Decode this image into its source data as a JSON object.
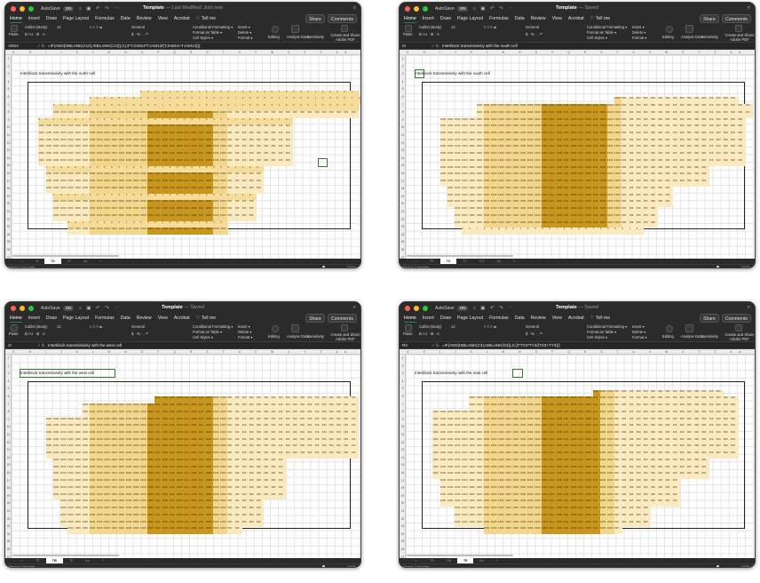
{
  "app": {
    "autosave_label": "AutoSave",
    "autosave_state": "ON",
    "quick_access": "⌂ ▣ ↶ ↷ ⋯",
    "file_name": "Template"
  },
  "menu": [
    "Home",
    "Insert",
    "Draw",
    "Page Layout",
    "Formulas",
    "Data",
    "Review",
    "View",
    "Acrobat"
  ],
  "tell_me": "Tell me",
  "share_label": "Share",
  "comments_label": "Comments",
  "ribbon": {
    "paste": "Paste",
    "font_name": "Calibri (Body)",
    "font_size": "12",
    "number_format": "General",
    "conditional_formatting": "Conditional Formatting",
    "format_as_table": "Format as Table",
    "cell_styles": "Cell Styles",
    "insert": "Insert",
    "delete": "Delete",
    "format": "Format",
    "editing": "Editing",
    "analyse_data": "Analyse Data",
    "sensitivity": "Sensitivity",
    "create_share_pdf": "Create and Share Adobe PDF"
  },
  "windows": [
    {
      "status_suffix": "— Last Modified: Just now",
      "name_box": "AM14",
      "formula": "=IF(AND(ISBLANK(A14),ISBLANK(C13)),0,(4*TJAM14*TJAM13/(TJAM14+TJAM13)))",
      "label": "Interblock transmissivity with the north cell",
      "active_tab": "TX",
      "tabs": [
        "Tr",
        "TX",
        "TY",
        "Inv"
      ]
    },
    {
      "status_suffix": "— Saved",
      "name_box": "I3",
      "formula": "Interblock transmissivity with the south cell",
      "label": "Interblock transmissivity with the south cell",
      "active_tab": "TX",
      "tabs": [
        "TR",
        "TX",
        "TY",
        "TY2",
        "Inv"
      ]
    },
    {
      "status_suffix": "— Saved",
      "name_box": "I3",
      "formula": "Interblock transmissivity with the west cell",
      "label": "Interblock transmissivity with the west cell",
      "active_tab": "TW",
      "tabs": [
        "TR",
        "TW",
        "TE",
        "Inv"
      ]
    },
    {
      "status_suffix": "— Saved",
      "name_box": "R3",
      "formula": "=IF(AND(ISBLANK(C3),ISBLANK(D3)),0,(2*TX3*TY3/(TX3+TY3)))",
      "label": "Interblock transmissivity with the east cell",
      "active_tab": "TE",
      "tabs": [
        "TR",
        "TW",
        "TE",
        "Inv"
      ]
    }
  ],
  "status": {
    "ready": "Ready",
    "calculate": "Calculate",
    "zoom": "100%"
  },
  "cell_values": {
    "zero": "0",
    "low": "500",
    "mid": "1000",
    "high": "1111",
    "top": "2000"
  },
  "colors": {
    "light": "#fbe9bf",
    "mid": "#f1d68b",
    "dark": "#c8961f",
    "grid_bg": "#ffffff",
    "chrome": "#2b2b2b"
  }
}
